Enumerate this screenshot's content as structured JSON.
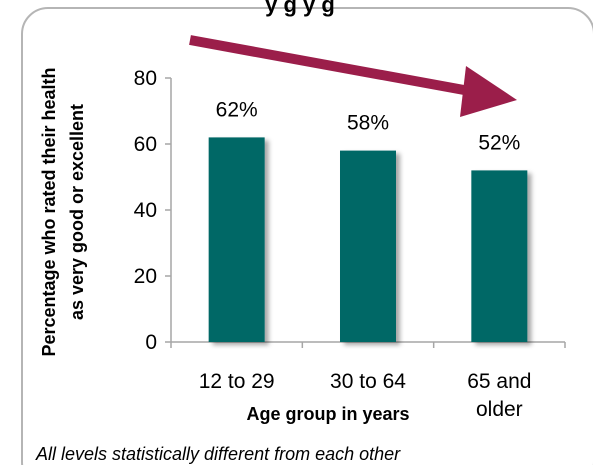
{
  "chart_data": {
    "type": "bar",
    "title": "y g y g",
    "categories": [
      [
        "12 to 29"
      ],
      [
        "30 to 64"
      ],
      [
        "65 and",
        "older"
      ]
    ],
    "values": [
      62,
      58,
      52
    ],
    "data_labels": [
      "62%",
      "58%",
      "52%"
    ],
    "xlabel": "Age group in years",
    "ylabel": [
      "Percentage who rated their health",
      "as very good or excellent"
    ],
    "ylim": [
      0,
      80
    ],
    "yticks": [
      0,
      20,
      40,
      60,
      80
    ],
    "grid": false,
    "legend": "none",
    "footnote": "All levels statistically different from each other",
    "colors": {
      "bar": "#006766",
      "arrow": "#9b1e4a",
      "frame": "#b5b5b5",
      "axis": "#a6a6a6"
    }
  }
}
